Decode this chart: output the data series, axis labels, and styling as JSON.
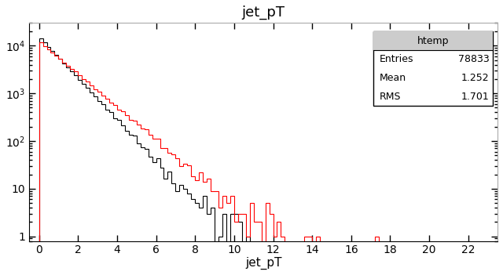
{
  "title": "jet_pT",
  "xlabel": "jet_pT",
  "ylabel": "",
  "xlim": [
    -0.5,
    23.5
  ],
  "ylim_log": [
    0.8,
    30000
  ],
  "stats_title": "htemp",
  "stats_entries": 78833,
  "stats_mean": "1.252",
  "stats_rms": "1.701",
  "background_color": "#ffffff",
  "plot_bg_color": "#ffffff",
  "hist_color_black": "#000000",
  "hist_color_red": "#ff0000",
  "n_bins": 115,
  "bin_range": [
    0,
    23
  ]
}
